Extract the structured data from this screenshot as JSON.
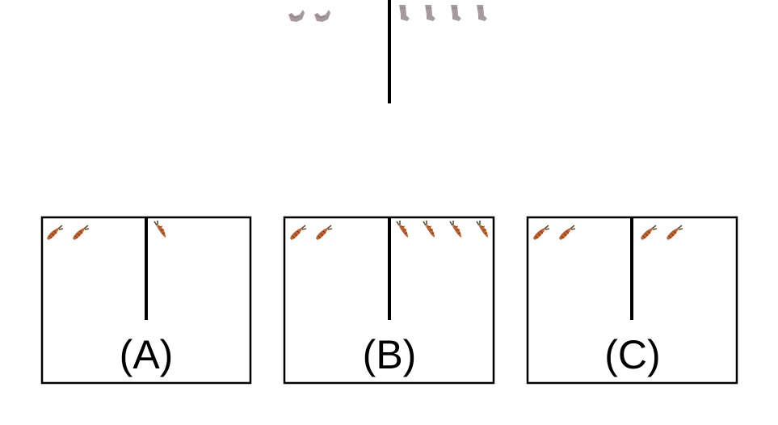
{
  "prompt": {
    "left_icons": [
      "sock-icon",
      "sock-icon"
    ],
    "right_icons": [
      "sock-icon",
      "sock-icon",
      "sock-icon",
      "sock-icon"
    ]
  },
  "options": [
    {
      "label": "(A)",
      "left_icons": [
        "carrot-icon",
        "carrot-icon"
      ],
      "right_icons": [
        "carrot-icon"
      ]
    },
    {
      "label": "(B)",
      "left_icons": [
        "carrot-icon",
        "carrot-icon"
      ],
      "right_icons": [
        "carrot-icon",
        "carrot-icon",
        "carrot-icon",
        "carrot-icon"
      ]
    },
    {
      "label": "(C)",
      "left_icons": [
        "carrot-icon",
        "carrot-icon"
      ],
      "right_icons": [
        "carrot-icon",
        "carrot-icon"
      ]
    }
  ],
  "colors": {
    "sock": "#a69a9f",
    "carrot": "#c0622f",
    "carrot_leaf": "#5d4d32",
    "line": "#000000"
  }
}
